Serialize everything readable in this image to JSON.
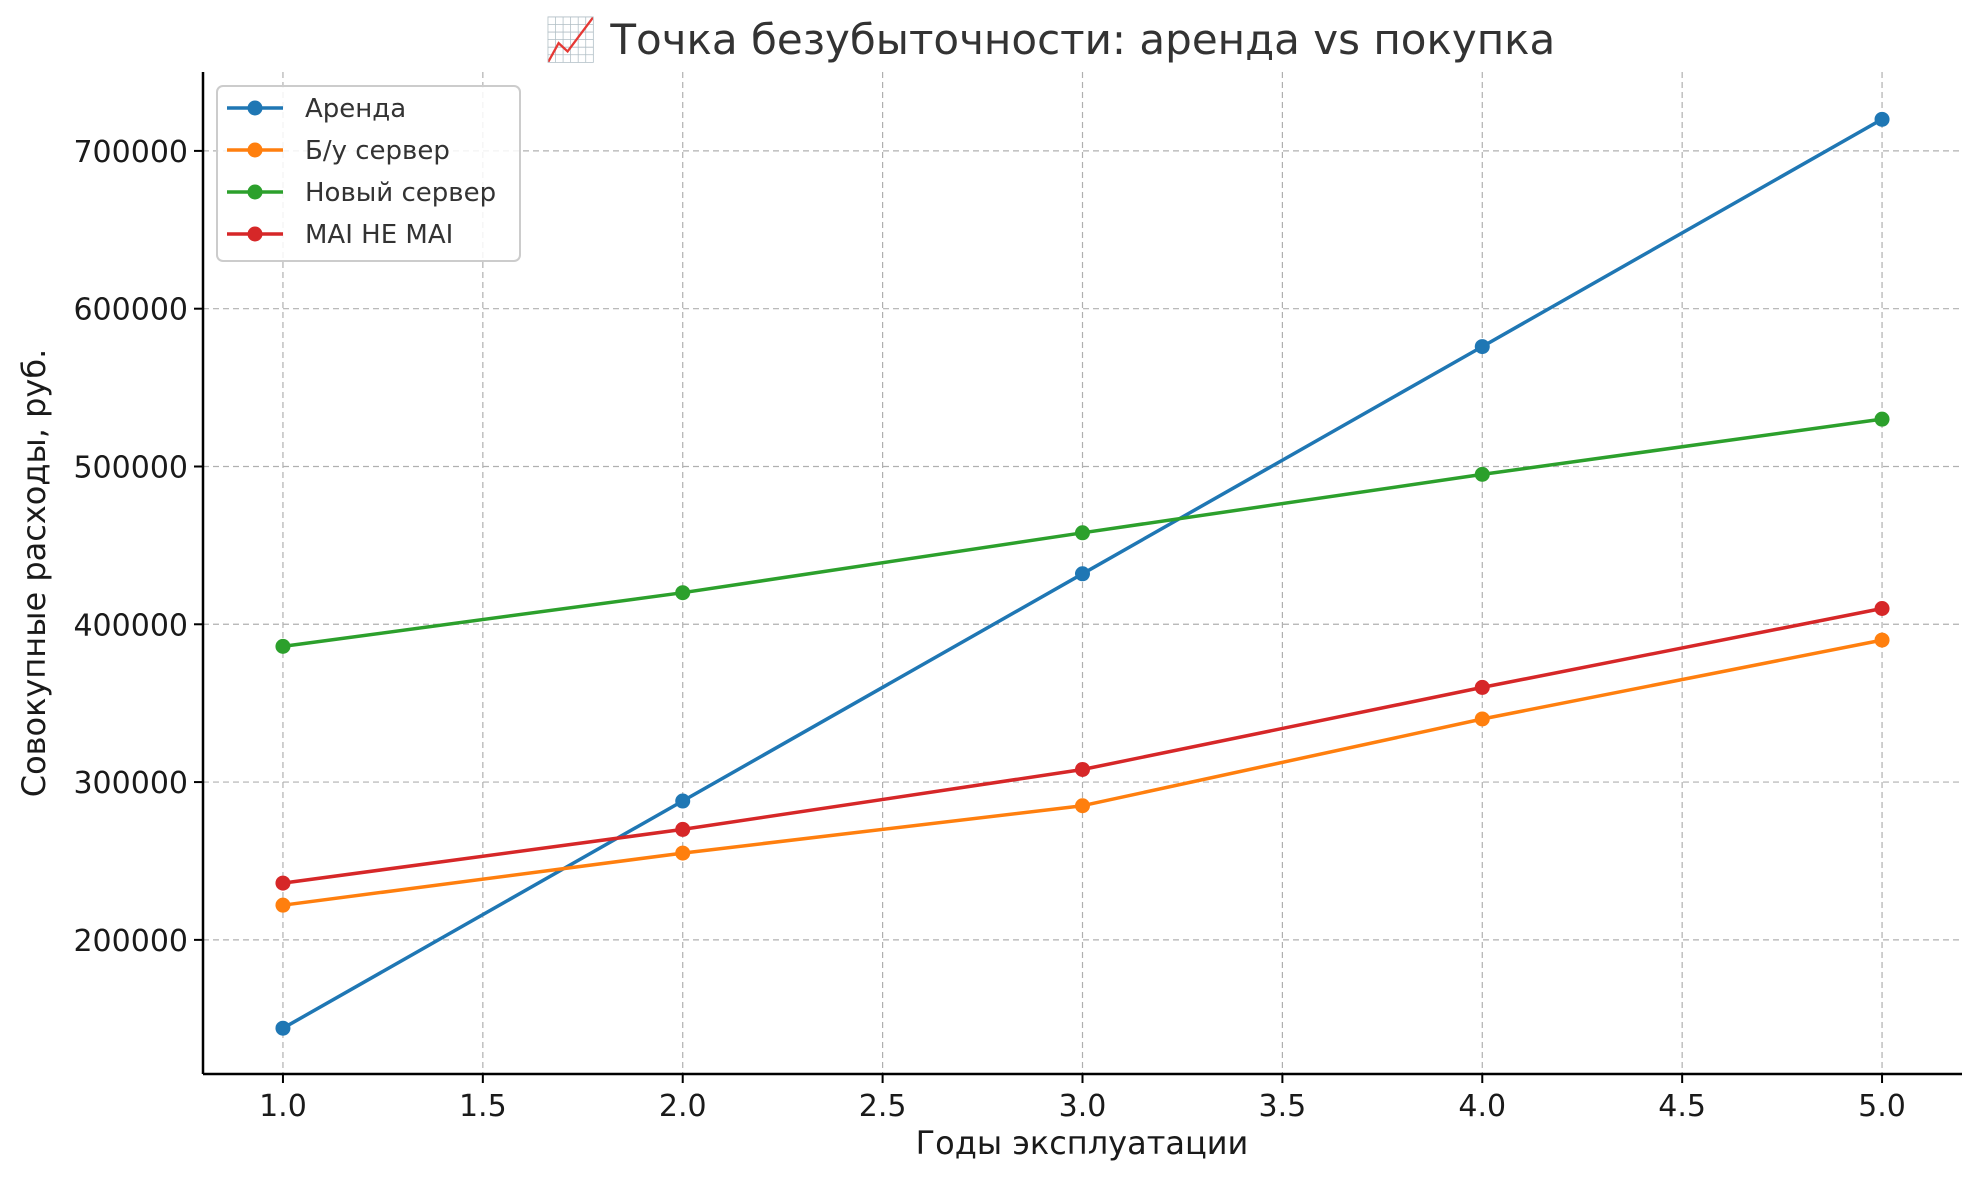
{
  "chart_data": {
    "type": "line",
    "title": "📈 Точка безубыточности: аренда vs покупка",
    "xlabel": "Годы эксплуатации",
    "ylabel": "Совокупные расходы, руб.",
    "x": [
      1,
      2,
      3,
      4,
      5
    ],
    "xlim": [
      0.8,
      5.2
    ],
    "ylim": [
      115000,
      750000
    ],
    "xticks": [
      1.0,
      1.5,
      2.0,
      2.5,
      3.0,
      3.5,
      4.0,
      4.5,
      5.0
    ],
    "xtick_labels": [
      "1.0",
      "1.5",
      "2.0",
      "2.5",
      "3.0",
      "3.5",
      "4.0",
      "4.5",
      "5.0"
    ],
    "yticks": [
      200000,
      300000,
      400000,
      500000,
      600000,
      700000
    ],
    "ytick_labels": [
      "200000",
      "300000",
      "400000",
      "500000",
      "600000",
      "700000"
    ],
    "grid": true,
    "legend_position": "top-left",
    "series": [
      {
        "name": "Аренда",
        "color": "#1f77b4",
        "values": [
          144000,
          288000,
          432000,
          576000,
          720000
        ]
      },
      {
        "name": "Б/у сервер",
        "color": "#ff7f0e",
        "values": [
          222000,
          255000,
          285000,
          340000,
          390000
        ]
      },
      {
        "name": "Новый сервер",
        "color": "#2ca02c",
        "values": [
          386000,
          420000,
          458000,
          495000,
          530000
        ]
      },
      {
        "name": "MAI HE MAI",
        "color": "#d62728",
        "values": [
          236000,
          270000,
          308000,
          360000,
          410000
        ]
      }
    ]
  }
}
